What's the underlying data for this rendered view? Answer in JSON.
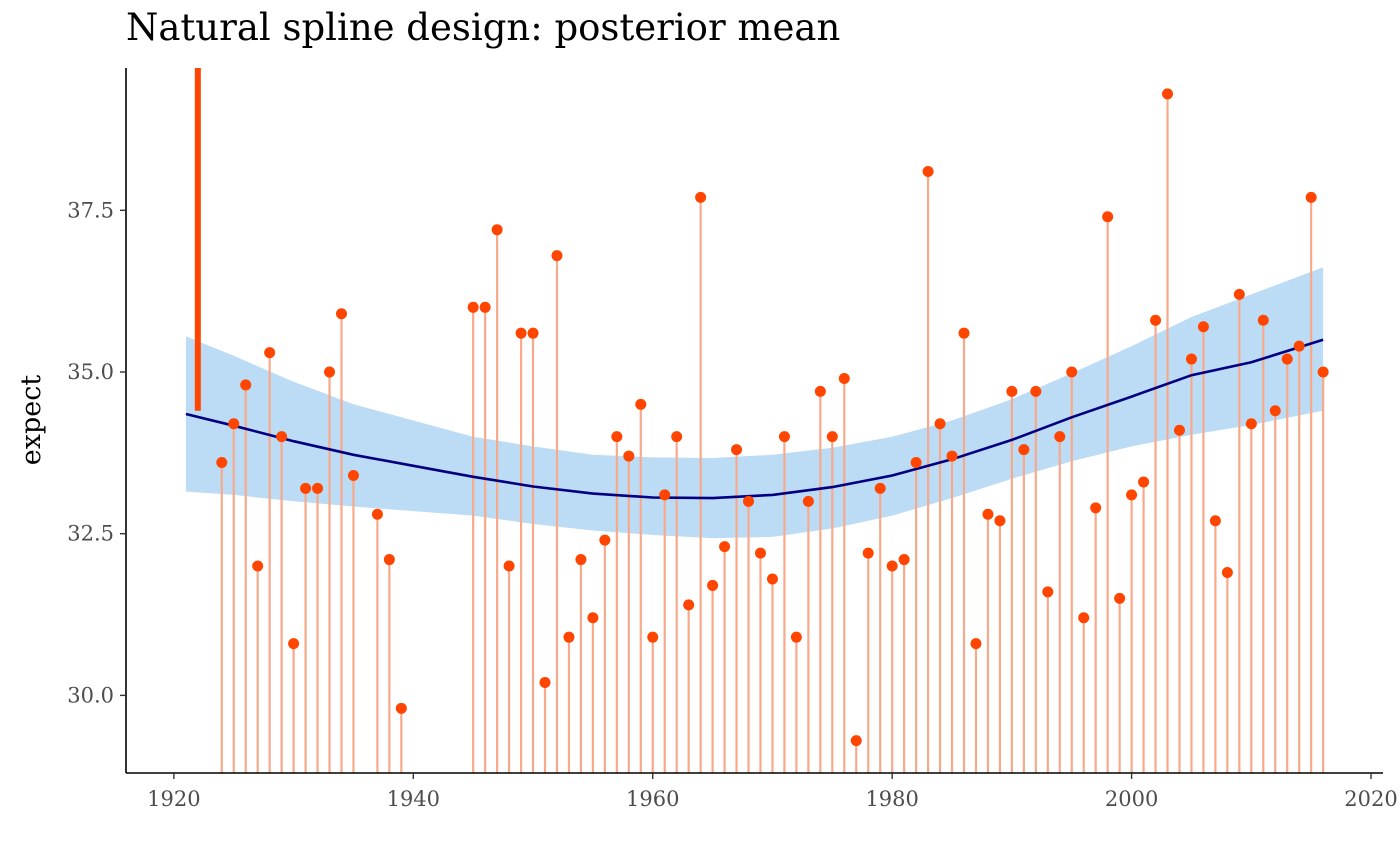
{
  "chart_data": {
    "type": "scatter",
    "title": "Natural spline design: posterior mean",
    "xlabel": "",
    "ylabel": "expect",
    "xlim": [
      1916,
      2021
    ],
    "ylim": [
      28.8,
      39.7
    ],
    "x_ticks": [
      1920,
      1940,
      1960,
      1980,
      2000,
      2020
    ],
    "x_tick_labels": [
      "1920",
      "1940",
      "1960",
      "1980",
      "2000",
      "2020"
    ],
    "y_ticks": [
      30.0,
      32.5,
      35.0,
      37.5
    ],
    "y_tick_labels": [
      "30.0",
      "32.5",
      "35.0",
      "37.5"
    ],
    "grid": false,
    "colors": {
      "points": "#ff4500",
      "segments": "#f7a98b",
      "mean_line": "#000080",
      "ribbon": "#bcdcf5",
      "marker": "#ff4500"
    },
    "marker_bar": {
      "x": 1922,
      "y_from": 34.4,
      "y_to": 39.7
    },
    "series": [
      {
        "type": "segment-points",
        "x": [
          1924,
          1925,
          1926,
          1927,
          1928,
          1929,
          1930,
          1931,
          1932,
          1933,
          1934,
          1935,
          1937,
          1938,
          1939,
          1945,
          1946,
          1947,
          1948,
          1949,
          1950,
          1951,
          1952,
          1953,
          1954,
          1955,
          1956,
          1957,
          1958,
          1959,
          1960,
          1961,
          1962,
          1963,
          1964,
          1965,
          1966,
          1967,
          1968,
          1969,
          1970,
          1971,
          1972,
          1973,
          1974,
          1975,
          1976,
          1977,
          1978,
          1979,
          1980,
          1981,
          1982,
          1983,
          1984,
          1985,
          1986,
          1987,
          1988,
          1989,
          1990,
          1991,
          1992,
          1993,
          1994,
          1995,
          1996,
          1997,
          1998,
          1999,
          2000,
          2001,
          2002,
          2003,
          2004,
          2005,
          2006,
          2007,
          2008,
          2009,
          2010,
          2011,
          2012,
          2013,
          2014,
          2015,
          2016
        ],
        "y": [
          33.6,
          34.2,
          34.8,
          32.0,
          35.3,
          34.0,
          30.8,
          33.2,
          33.2,
          35.0,
          35.9,
          33.4,
          32.8,
          32.1,
          29.8,
          36.0,
          36.0,
          37.2,
          32.0,
          35.6,
          35.6,
          30.2,
          36.8,
          30.9,
          32.1,
          31.2,
          32.4,
          34.0,
          33.7,
          34.5,
          30.9,
          33.1,
          34.0,
          31.4,
          37.7,
          31.7,
          32.3,
          33.8,
          33.0,
          32.2,
          31.8,
          34.0,
          30.9,
          33.0,
          34.7,
          34.0,
          34.9,
          29.3,
          32.2,
          33.2,
          32.0,
          32.1,
          33.6,
          38.1,
          34.2,
          33.7,
          35.6,
          30.8,
          32.8,
          32.7,
          34.7,
          33.8,
          34.7,
          31.6,
          34.0,
          35.0,
          31.2,
          32.9,
          37.4,
          31.5,
          33.1,
          33.3,
          35.8,
          39.3,
          34.1,
          35.2,
          35.7,
          32.7,
          31.9,
          36.2,
          34.2,
          35.8,
          34.4,
          35.2,
          35.4,
          37.7,
          35.0
        ]
      },
      {
        "type": "line",
        "x": [
          1921,
          1925,
          1930,
          1935,
          1940,
          1945,
          1950,
          1955,
          1960,
          1965,
          1970,
          1975,
          1980,
          1985,
          1990,
          1995,
          2000,
          2005,
          2010,
          2016
        ],
        "y": [
          34.35,
          34.17,
          33.93,
          33.72,
          33.55,
          33.38,
          33.23,
          33.12,
          33.06,
          33.05,
          33.1,
          33.22,
          33.4,
          33.65,
          33.95,
          34.3,
          34.62,
          34.95,
          35.15,
          35.5
        ]
      },
      {
        "type": "ribbon",
        "x": [
          1921,
          1925,
          1930,
          1935,
          1940,
          1945,
          1950,
          1955,
          1960,
          1965,
          1970,
          1975,
          1980,
          1985,
          1990,
          1995,
          2000,
          2005,
          2010,
          2016
        ],
        "lower": [
          33.15,
          33.1,
          33.0,
          32.92,
          32.85,
          32.78,
          32.65,
          32.55,
          32.48,
          32.43,
          32.45,
          32.58,
          32.78,
          33.05,
          33.35,
          33.62,
          33.85,
          34.03,
          34.18,
          34.4
        ],
        "upper": [
          35.55,
          35.25,
          34.85,
          34.5,
          34.25,
          34.0,
          33.85,
          33.72,
          33.68,
          33.67,
          33.72,
          33.83,
          34.0,
          34.25,
          34.58,
          34.98,
          35.4,
          35.85,
          36.2,
          36.62
        ]
      }
    ]
  }
}
